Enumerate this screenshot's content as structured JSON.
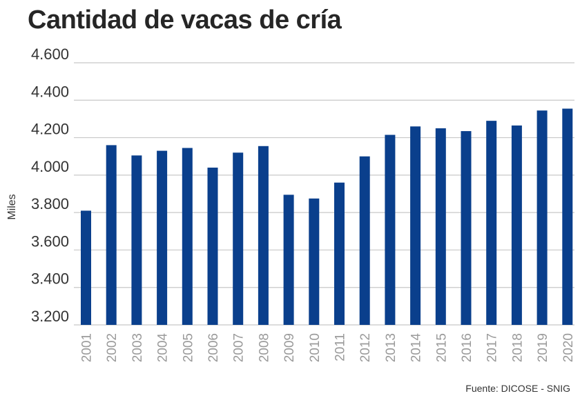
{
  "chart_data": {
    "type": "bar",
    "title": "Cantidad de vacas de cría",
    "xlabel": "",
    "ylabel": "Miles",
    "ylim": [
      3200,
      4600
    ],
    "yticks": [
      3200,
      3400,
      3600,
      3800,
      4000,
      4200,
      4400,
      4600
    ],
    "ytick_labels": [
      "3.200",
      "3.400",
      "3.600",
      "3.800",
      "4.000",
      "4.200",
      "4.400",
      "4.600"
    ],
    "categories": [
      "2001",
      "2002",
      "2003",
      "2004",
      "2005",
      "2006",
      "2007",
      "2008",
      "2009",
      "2010",
      "2011",
      "2012",
      "2013",
      "2014",
      "2015",
      "2016",
      "2017",
      "2018",
      "2019",
      "2020"
    ],
    "values": [
      3810,
      4160,
      4105,
      4130,
      4145,
      4040,
      4120,
      4155,
      3895,
      3875,
      3960,
      4100,
      4215,
      4260,
      4250,
      4235,
      4290,
      4265,
      4345,
      4355
    ],
    "grid": true,
    "bar_color": "#0a3f8c",
    "grid_color": "#c8c8c8",
    "source": "Fuente: DICOSE - SNIG"
  }
}
